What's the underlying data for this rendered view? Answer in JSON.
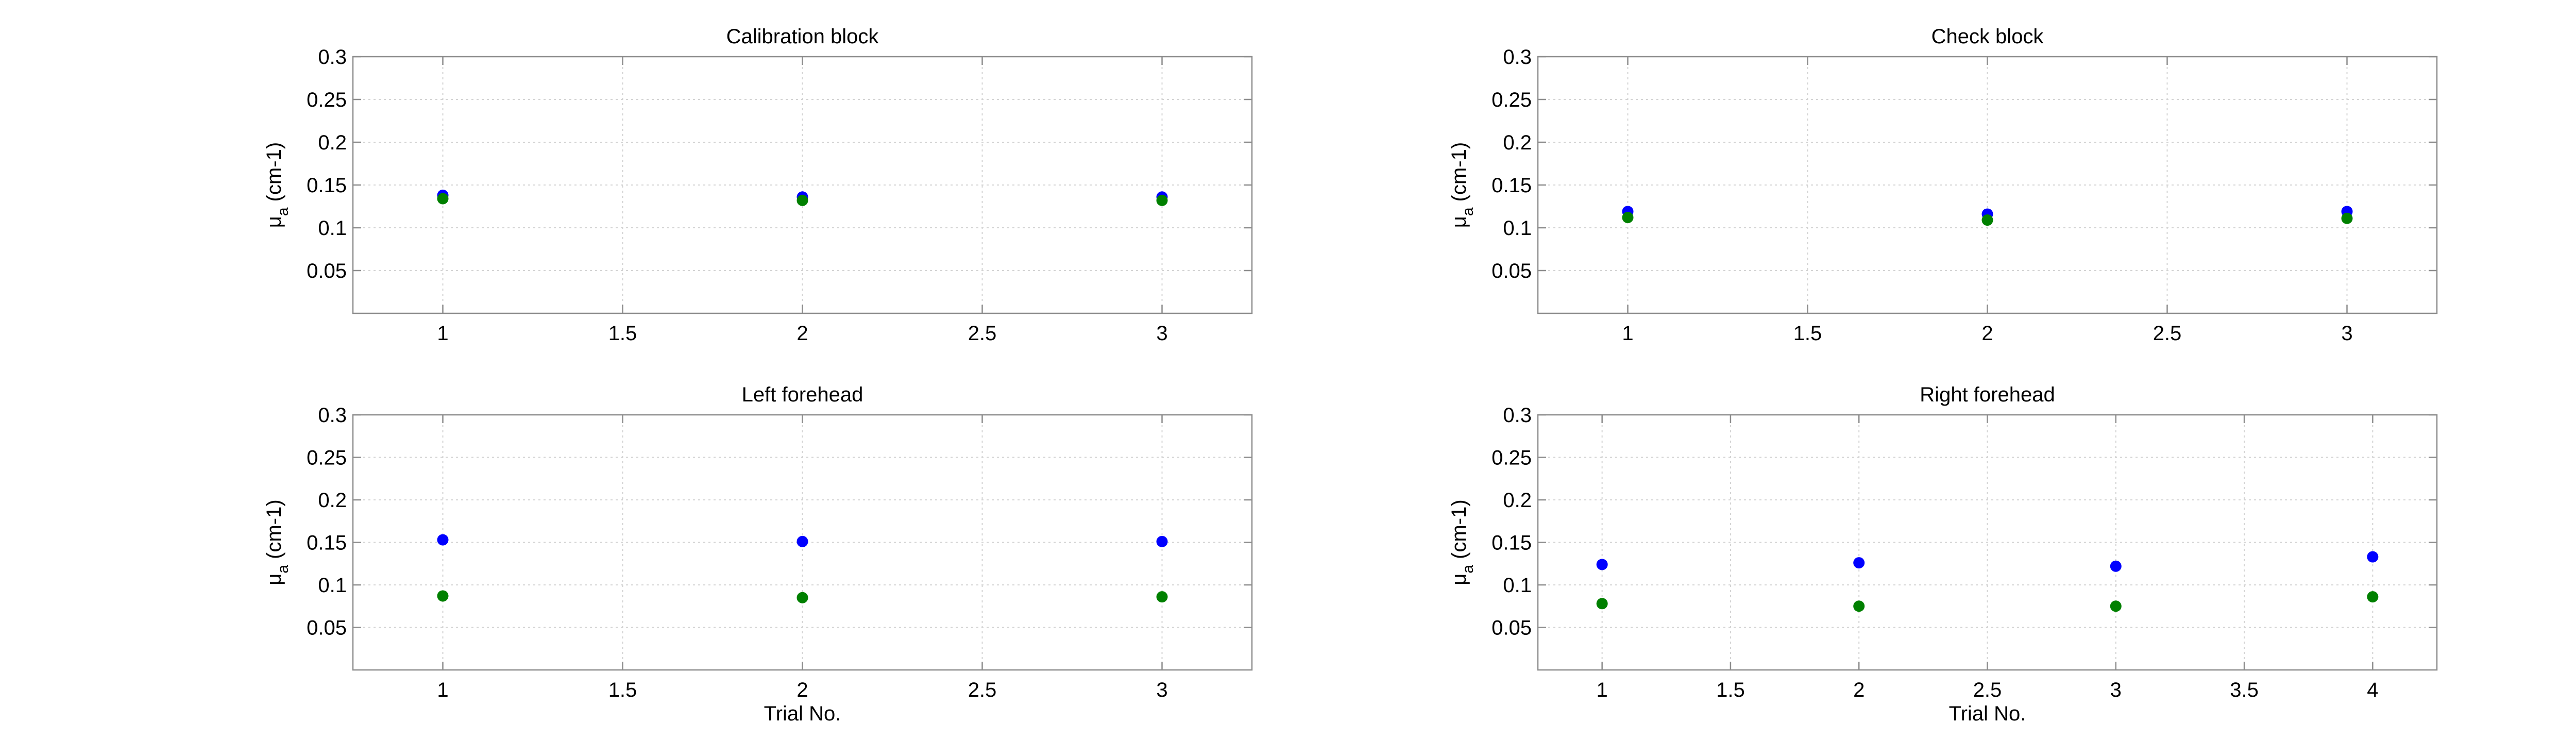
{
  "chart_data": [
    {
      "type": "scatter",
      "title": "Calibration block",
      "xlabel": "",
      "ylabel": "μa (cm-1)",
      "xlim": [
        0.75,
        3.25
      ],
      "ylim": [
        0,
        0.3
      ],
      "xticks": [
        1,
        1.5,
        2,
        2.5,
        3
      ],
      "xtick_labels": [
        "1",
        "1.5",
        "2",
        "2.5",
        "3"
      ],
      "yticks": [
        0.05,
        0.1,
        0.15,
        0.2,
        0.25,
        0.3
      ],
      "ytick_labels": [
        "0.05",
        "0.1",
        "0.15",
        "0.2",
        "0.25",
        "0.3"
      ],
      "grid": true,
      "series": [
        {
          "color": "#0000ff",
          "x": [
            1,
            2,
            3
          ],
          "y": [
            0.138,
            0.136,
            0.136
          ]
        },
        {
          "color": "#008000",
          "x": [
            1,
            2,
            3
          ],
          "y": [
            0.134,
            0.132,
            0.132
          ]
        }
      ]
    },
    {
      "type": "scatter",
      "title": "Check block",
      "xlabel": "",
      "ylabel": "μa (cm-1)",
      "xlim": [
        0.75,
        3.25
      ],
      "ylim": [
        0,
        0.3
      ],
      "xticks": [
        1,
        1.5,
        2,
        2.5,
        3
      ],
      "xtick_labels": [
        "1",
        "1.5",
        "2",
        "2.5",
        "3"
      ],
      "yticks": [
        0.05,
        0.1,
        0.15,
        0.2,
        0.25,
        0.3
      ],
      "ytick_labels": [
        "0.05",
        "0.1",
        "0.15",
        "0.2",
        "0.25",
        "0.3"
      ],
      "grid": true,
      "series": [
        {
          "color": "#0000ff",
          "x": [
            1,
            2,
            3
          ],
          "y": [
            0.119,
            0.116,
            0.119
          ]
        },
        {
          "color": "#008000",
          "x": [
            1,
            2,
            3
          ],
          "y": [
            0.112,
            0.109,
            0.111
          ]
        }
      ]
    },
    {
      "type": "scatter",
      "title": "Left forehead",
      "xlabel": "Trial No.",
      "ylabel": "μa (cm-1)",
      "xlim": [
        0.75,
        3.25
      ],
      "ylim": [
        0,
        0.3
      ],
      "xticks": [
        1,
        1.5,
        2,
        2.5,
        3
      ],
      "xtick_labels": [
        "1",
        "1.5",
        "2",
        "2.5",
        "3"
      ],
      "yticks": [
        0.05,
        0.1,
        0.15,
        0.2,
        0.25,
        0.3
      ],
      "ytick_labels": [
        "0.05",
        "0.1",
        "0.15",
        "0.2",
        "0.25",
        "0.3"
      ],
      "grid": true,
      "series": [
        {
          "color": "#0000ff",
          "x": [
            1,
            2,
            3
          ],
          "y": [
            0.153,
            0.151,
            0.151
          ]
        },
        {
          "color": "#008000",
          "x": [
            1,
            2,
            3
          ],
          "y": [
            0.087,
            0.085,
            0.086
          ]
        }
      ]
    },
    {
      "type": "scatter",
      "title": "Right forehead",
      "xlabel": "Trial No.",
      "ylabel": "μa (cm-1)",
      "xlim": [
        0.75,
        4.25
      ],
      "ylim": [
        0,
        0.3
      ],
      "xticks": [
        1,
        1.5,
        2,
        2.5,
        3,
        3.5,
        4
      ],
      "xtick_labels": [
        "1",
        "1.5",
        "2",
        "2.5",
        "3",
        "3.5",
        "4"
      ],
      "yticks": [
        0.05,
        0.1,
        0.15,
        0.2,
        0.25,
        0.3
      ],
      "ytick_labels": [
        "0.05",
        "0.1",
        "0.15",
        "0.2",
        "0.25",
        "0.3"
      ],
      "grid": true,
      "series": [
        {
          "color": "#0000ff",
          "x": [
            1,
            2,
            3,
            4
          ],
          "y": [
            0.124,
            0.126,
            0.122,
            0.133
          ]
        },
        {
          "color": "#008000",
          "x": [
            1,
            2,
            3,
            4
          ],
          "y": [
            0.078,
            0.075,
            0.075,
            0.086
          ]
        }
      ]
    }
  ]
}
